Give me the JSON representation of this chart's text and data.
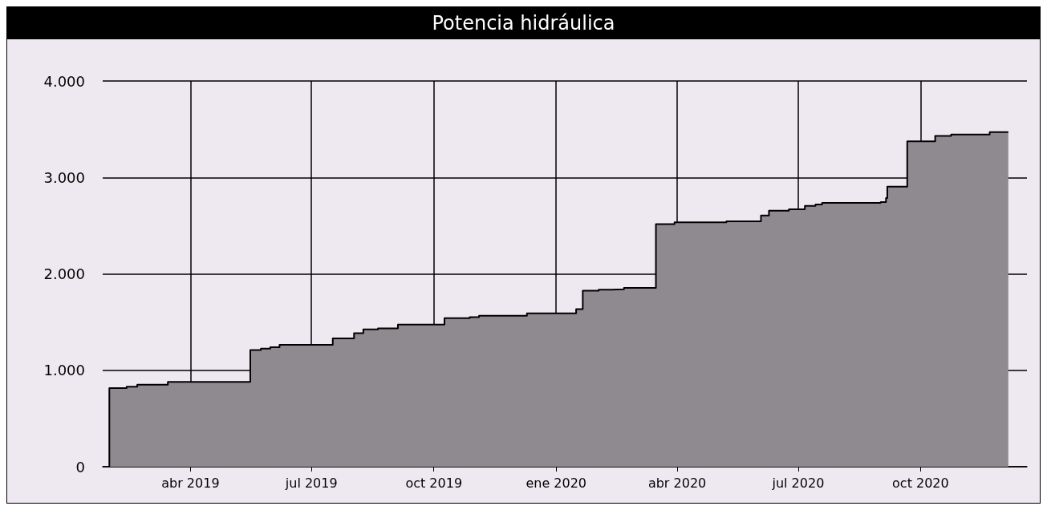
{
  "chart_data": {
    "type": "area",
    "title": "Potencia hidráulica",
    "xlim": [
      "2019-01-25",
      "2020-12-20"
    ],
    "xticks": [
      {
        "value": "2019-04-01",
        "label": "abr 2019"
      },
      {
        "value": "2019-07-01",
        "label": "jul 2019"
      },
      {
        "value": "2019-10-01",
        "label": "oct 2019"
      },
      {
        "value": "2020-01-01",
        "label": "ene 2020"
      },
      {
        "value": "2020-04-01",
        "label": "abr 2020"
      },
      {
        "value": "2020-07-01",
        "label": "jul 2020"
      },
      {
        "value": "2020-10-01",
        "label": "oct 2020"
      }
    ],
    "ylim": [
      0,
      4000
    ],
    "yticks": [
      0,
      {
        "value": 1000,
        "label": "1.000"
      },
      {
        "value": 2000,
        "label": "2.000"
      },
      {
        "value": 3000,
        "label": "3.000"
      },
      {
        "value": 4000,
        "label": "4.000"
      }
    ],
    "grid": true,
    "series": [
      {
        "color": "#8f8a90",
        "x": [
          "2019-01-30",
          "2019-01-30",
          "2019-02-12",
          "2019-02-12",
          "2019-02-20",
          "2019-02-20",
          "2019-03-15",
          "2019-03-15",
          "2019-05-16",
          "2019-05-16",
          "2019-05-24",
          "2019-05-24",
          "2019-05-31",
          "2019-05-31",
          "2019-06-07",
          "2019-06-07",
          "2019-07-17",
          "2019-07-17",
          "2019-08-02",
          "2019-08-02",
          "2019-08-09",
          "2019-08-09",
          "2019-08-20",
          "2019-08-20",
          "2019-09-04",
          "2019-09-04",
          "2019-10-09",
          "2019-10-09",
          "2019-10-28",
          "2019-10-28",
          "2019-11-04",
          "2019-11-04",
          "2019-12-10",
          "2019-12-10",
          "2020-01-16",
          "2020-01-16",
          "2020-01-21",
          "2020-01-21",
          "2020-02-02",
          "2020-02-02",
          "2020-02-11",
          "2020-02-11",
          "2020-02-21",
          "2020-02-21",
          "2020-03-16",
          "2020-03-16",
          "2020-03-30",
          "2020-03-30",
          "2020-05-08",
          "2020-05-08",
          "2020-06-03",
          "2020-06-03",
          "2020-06-09",
          "2020-06-09",
          "2020-06-24",
          "2020-06-24",
          "2020-07-06",
          "2020-07-06",
          "2020-07-14",
          "2020-07-14",
          "2020-07-19",
          "2020-07-19",
          "2020-09-01",
          "2020-09-01",
          "2020-09-05",
          "2020-09-05",
          "2020-09-06",
          "2020-09-06",
          "2020-09-21",
          "2020-09-21",
          "2020-10-12",
          "2020-10-12",
          "2020-10-24",
          "2020-10-24",
          "2020-11-22",
          "2020-11-22",
          "2020-12-06"
        ],
        "values": [
          0,
          815,
          815,
          830,
          830,
          850,
          850,
          880,
          880,
          1210,
          1210,
          1225,
          1225,
          1240,
          1240,
          1265,
          1265,
          1330,
          1330,
          1385,
          1385,
          1425,
          1425,
          1435,
          1435,
          1475,
          1475,
          1540,
          1540,
          1550,
          1550,
          1565,
          1565,
          1590,
          1590,
          1635,
          1635,
          1825,
          1825,
          1835,
          1835,
          1840,
          1840,
          1855,
          1855,
          2515,
          2515,
          2535,
          2535,
          2545,
          2545,
          2605,
          2605,
          2655,
          2655,
          2670,
          2670,
          2705,
          2705,
          2720,
          2720,
          2735,
          2735,
          2745,
          2745,
          2785,
          2785,
          2905,
          2905,
          3375,
          3375,
          3430,
          3430,
          3445,
          3445,
          3470,
          3470
        ]
      }
    ]
  }
}
